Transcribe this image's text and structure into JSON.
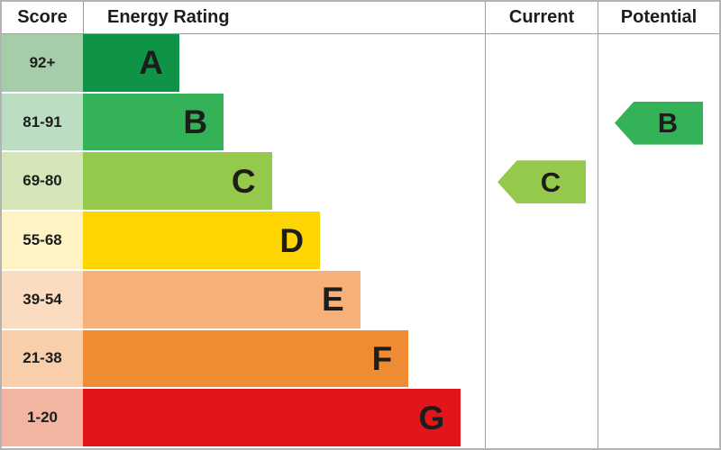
{
  "header": {
    "score_label": "Score",
    "rating_label": "Energy Rating",
    "current_label": "Current",
    "potential_label": "Potential"
  },
  "chart_data": {
    "type": "bar",
    "title": "Energy Rating",
    "categories": [
      "A",
      "B",
      "C",
      "D",
      "E",
      "F",
      "G"
    ],
    "bands": [
      {
        "letter": "A",
        "score_range": "92+",
        "bar_color": "#0f9347",
        "score_bg": "#a6cdaa",
        "width_pct": 24
      },
      {
        "letter": "B",
        "score_range": "81-91",
        "bar_color": "#33b257",
        "score_bg": "#bdddc2",
        "width_pct": 35
      },
      {
        "letter": "C",
        "score_range": "69-80",
        "bar_color": "#95c94c",
        "score_bg": "#d4e6b8",
        "width_pct": 47
      },
      {
        "letter": "D",
        "score_range": "55-68",
        "bar_color": "#fed502",
        "score_bg": "#fdf3c4",
        "width_pct": 59
      },
      {
        "letter": "E",
        "score_range": "39-54",
        "bar_color": "#f7b077",
        "score_bg": "#fbdcc0",
        "width_pct": 69
      },
      {
        "letter": "F",
        "score_range": "21-38",
        "bar_color": "#ef8c33",
        "score_bg": "#f9cfab",
        "width_pct": 81
      },
      {
        "letter": "G",
        "score_range": "1-20",
        "bar_color": "#e0161c",
        "score_bg": "#f2b5a2",
        "width_pct": 94
      }
    ],
    "current": {
      "letter": "C",
      "band_index": 2,
      "color": "#95c94c"
    },
    "potential": {
      "letter": "B",
      "band_index": 1,
      "color": "#33b257"
    }
  }
}
